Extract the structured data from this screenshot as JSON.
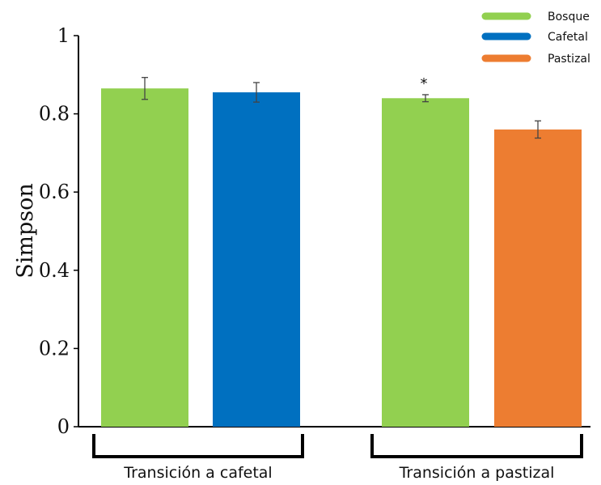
{
  "chart_data": {
    "type": "bar",
    "ylabel": "Simpson",
    "ylim": [
      0,
      1
    ],
    "yticks": [
      "0",
      "0.2",
      "0.4",
      "0.6",
      "0.8",
      "1"
    ],
    "ytick_values": [
      0,
      0.2,
      0.4,
      0.6,
      0.8,
      1
    ],
    "grid": false,
    "legend_position": "top-right",
    "legend": [
      {
        "name": "Bosque",
        "color": "#92D050"
      },
      {
        "name": "Cafetal",
        "color": "#0070C0"
      },
      {
        "name": "Pastizal",
        "color": "#ED7D31"
      }
    ],
    "groups": [
      {
        "label": "Transición a cafetal",
        "bars": [
          {
            "series": "Bosque",
            "value": 0.865,
            "error": 0.028,
            "color": "#92D050"
          },
          {
            "series": "Cafetal",
            "value": 0.855,
            "error": 0.025,
            "color": "#0070C0"
          }
        ]
      },
      {
        "label": "Transición a pastizal",
        "bars": [
          {
            "series": "Bosque",
            "value": 0.84,
            "error": 0.009,
            "color": "#92D050",
            "annotation": "*"
          },
          {
            "series": "Pastizal",
            "value": 0.76,
            "error": 0.022,
            "color": "#ED7D31"
          }
        ]
      }
    ]
  }
}
